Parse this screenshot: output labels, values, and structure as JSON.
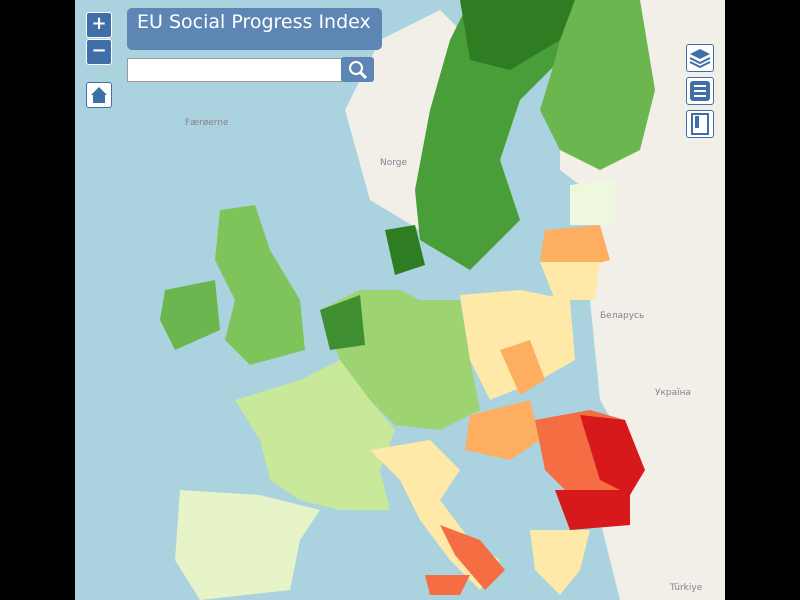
{
  "header": {
    "title": "EU Social Progress Index"
  },
  "controls": {
    "zoom_in": "+",
    "zoom_out": "−"
  },
  "map_labels": [
    "Færøerne",
    "Norge",
    "Беларусь",
    "Україна",
    "Türkiye"
  ]
}
